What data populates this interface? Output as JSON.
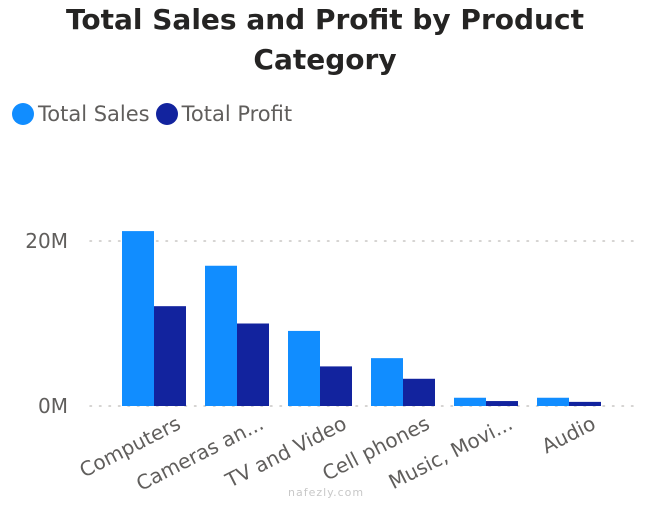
{
  "chart_data": {
    "type": "bar",
    "title": "Total Sales and Profit by Product Category",
    "categories": [
      "Computers",
      "Cameras an...",
      "TV and Video",
      "Cell phones",
      "Music, Movi...",
      "Audio"
    ],
    "series": [
      {
        "name": "Total Sales",
        "color": "#118DFF",
        "values": [
          21.2,
          17.0,
          9.1,
          5.8,
          1.0,
          1.0
        ]
      },
      {
        "name": "Total Profit",
        "color": "#12239E",
        "values": [
          12.1,
          10.0,
          4.8,
          3.3,
          0.6,
          0.5
        ]
      }
    ],
    "unit": "M",
    "y_ticks": [
      {
        "value": 0,
        "label": "0M"
      },
      {
        "value": 20,
        "label": "20M"
      }
    ],
    "ylim": [
      0,
      28
    ],
    "grid": true,
    "legend_position": "top-left",
    "xlabel": "",
    "ylabel": ""
  },
  "watermark": "nafezly.com"
}
